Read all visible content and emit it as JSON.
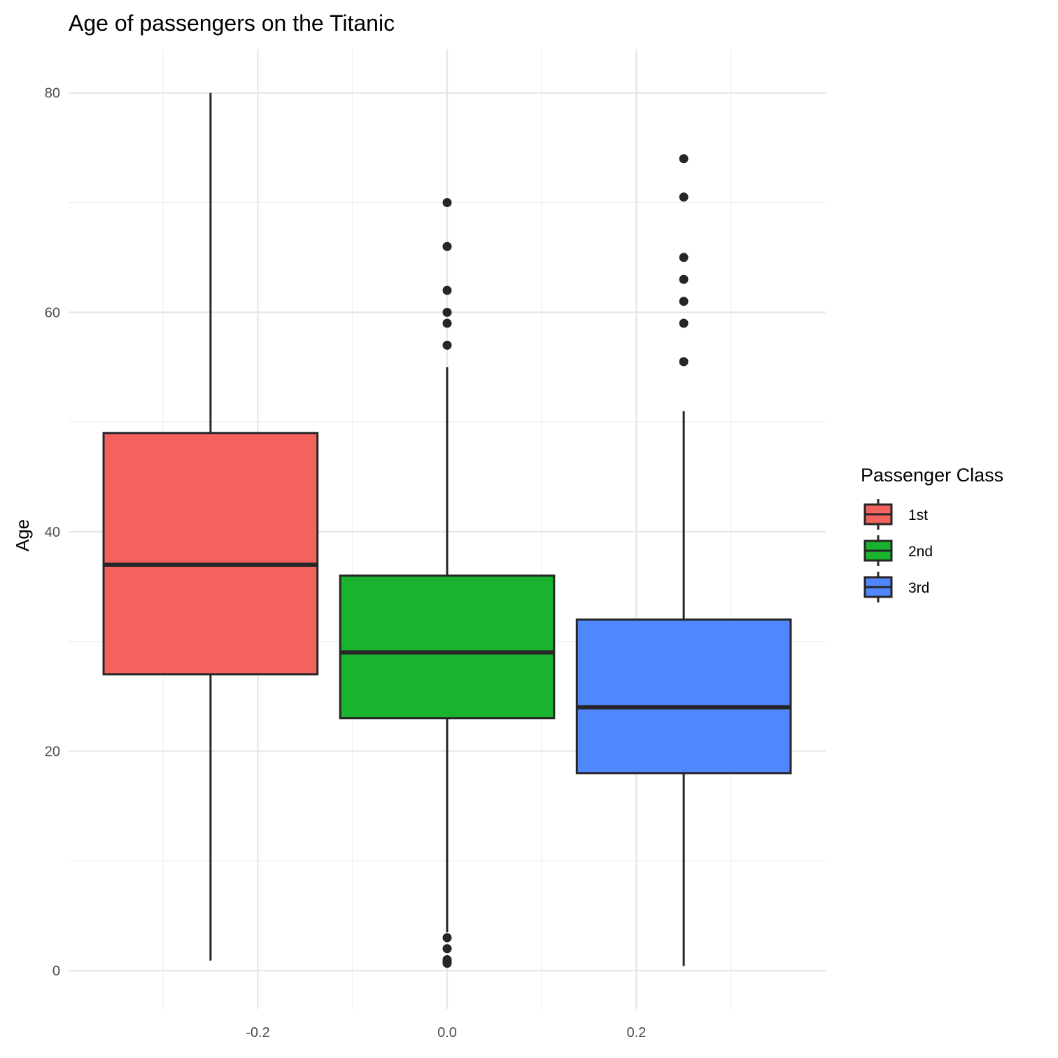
{
  "chart_data": {
    "type": "boxplot",
    "title": "Age of passengers on the Titanic",
    "xlabel": "",
    "ylabel": "Age",
    "xlim": [
      -0.4,
      0.4
    ],
    "ylim": [
      -3.5,
      84
    ],
    "x_ticks": [
      -0.2,
      0.0,
      0.2
    ],
    "x_tick_labels": [
      "-0.2",
      "0.0",
      "0.2"
    ],
    "y_ticks": [
      0,
      20,
      40,
      60,
      80
    ],
    "y_tick_labels": [
      "0",
      "20",
      "40",
      "60",
      "80"
    ],
    "grid": true,
    "legend": {
      "title": "Passenger Class",
      "position": "right"
    },
    "series": [
      {
        "name": "1st",
        "x": -0.25,
        "color": "#F3625D",
        "min": 0.92,
        "q1": 27,
        "median": 37,
        "q3": 49,
        "max": 80,
        "outliers": []
      },
      {
        "name": "2nd",
        "x": 0.0,
        "color": "#19B32F",
        "min": 3.5,
        "q1": 23,
        "median": 29,
        "q3": 36,
        "max": 55,
        "outliers": [
          70,
          66,
          62,
          60,
          59,
          57,
          3,
          2,
          1,
          0.83,
          0.67
        ]
      },
      {
        "name": "3rd",
        "x": 0.25,
        "color": "#5087FF",
        "min": 0.42,
        "q1": 18,
        "median": 24,
        "q3": 32,
        "max": 51,
        "outliers": [
          74,
          70.5,
          65,
          63,
          61,
          59,
          55.5
        ]
      }
    ]
  }
}
